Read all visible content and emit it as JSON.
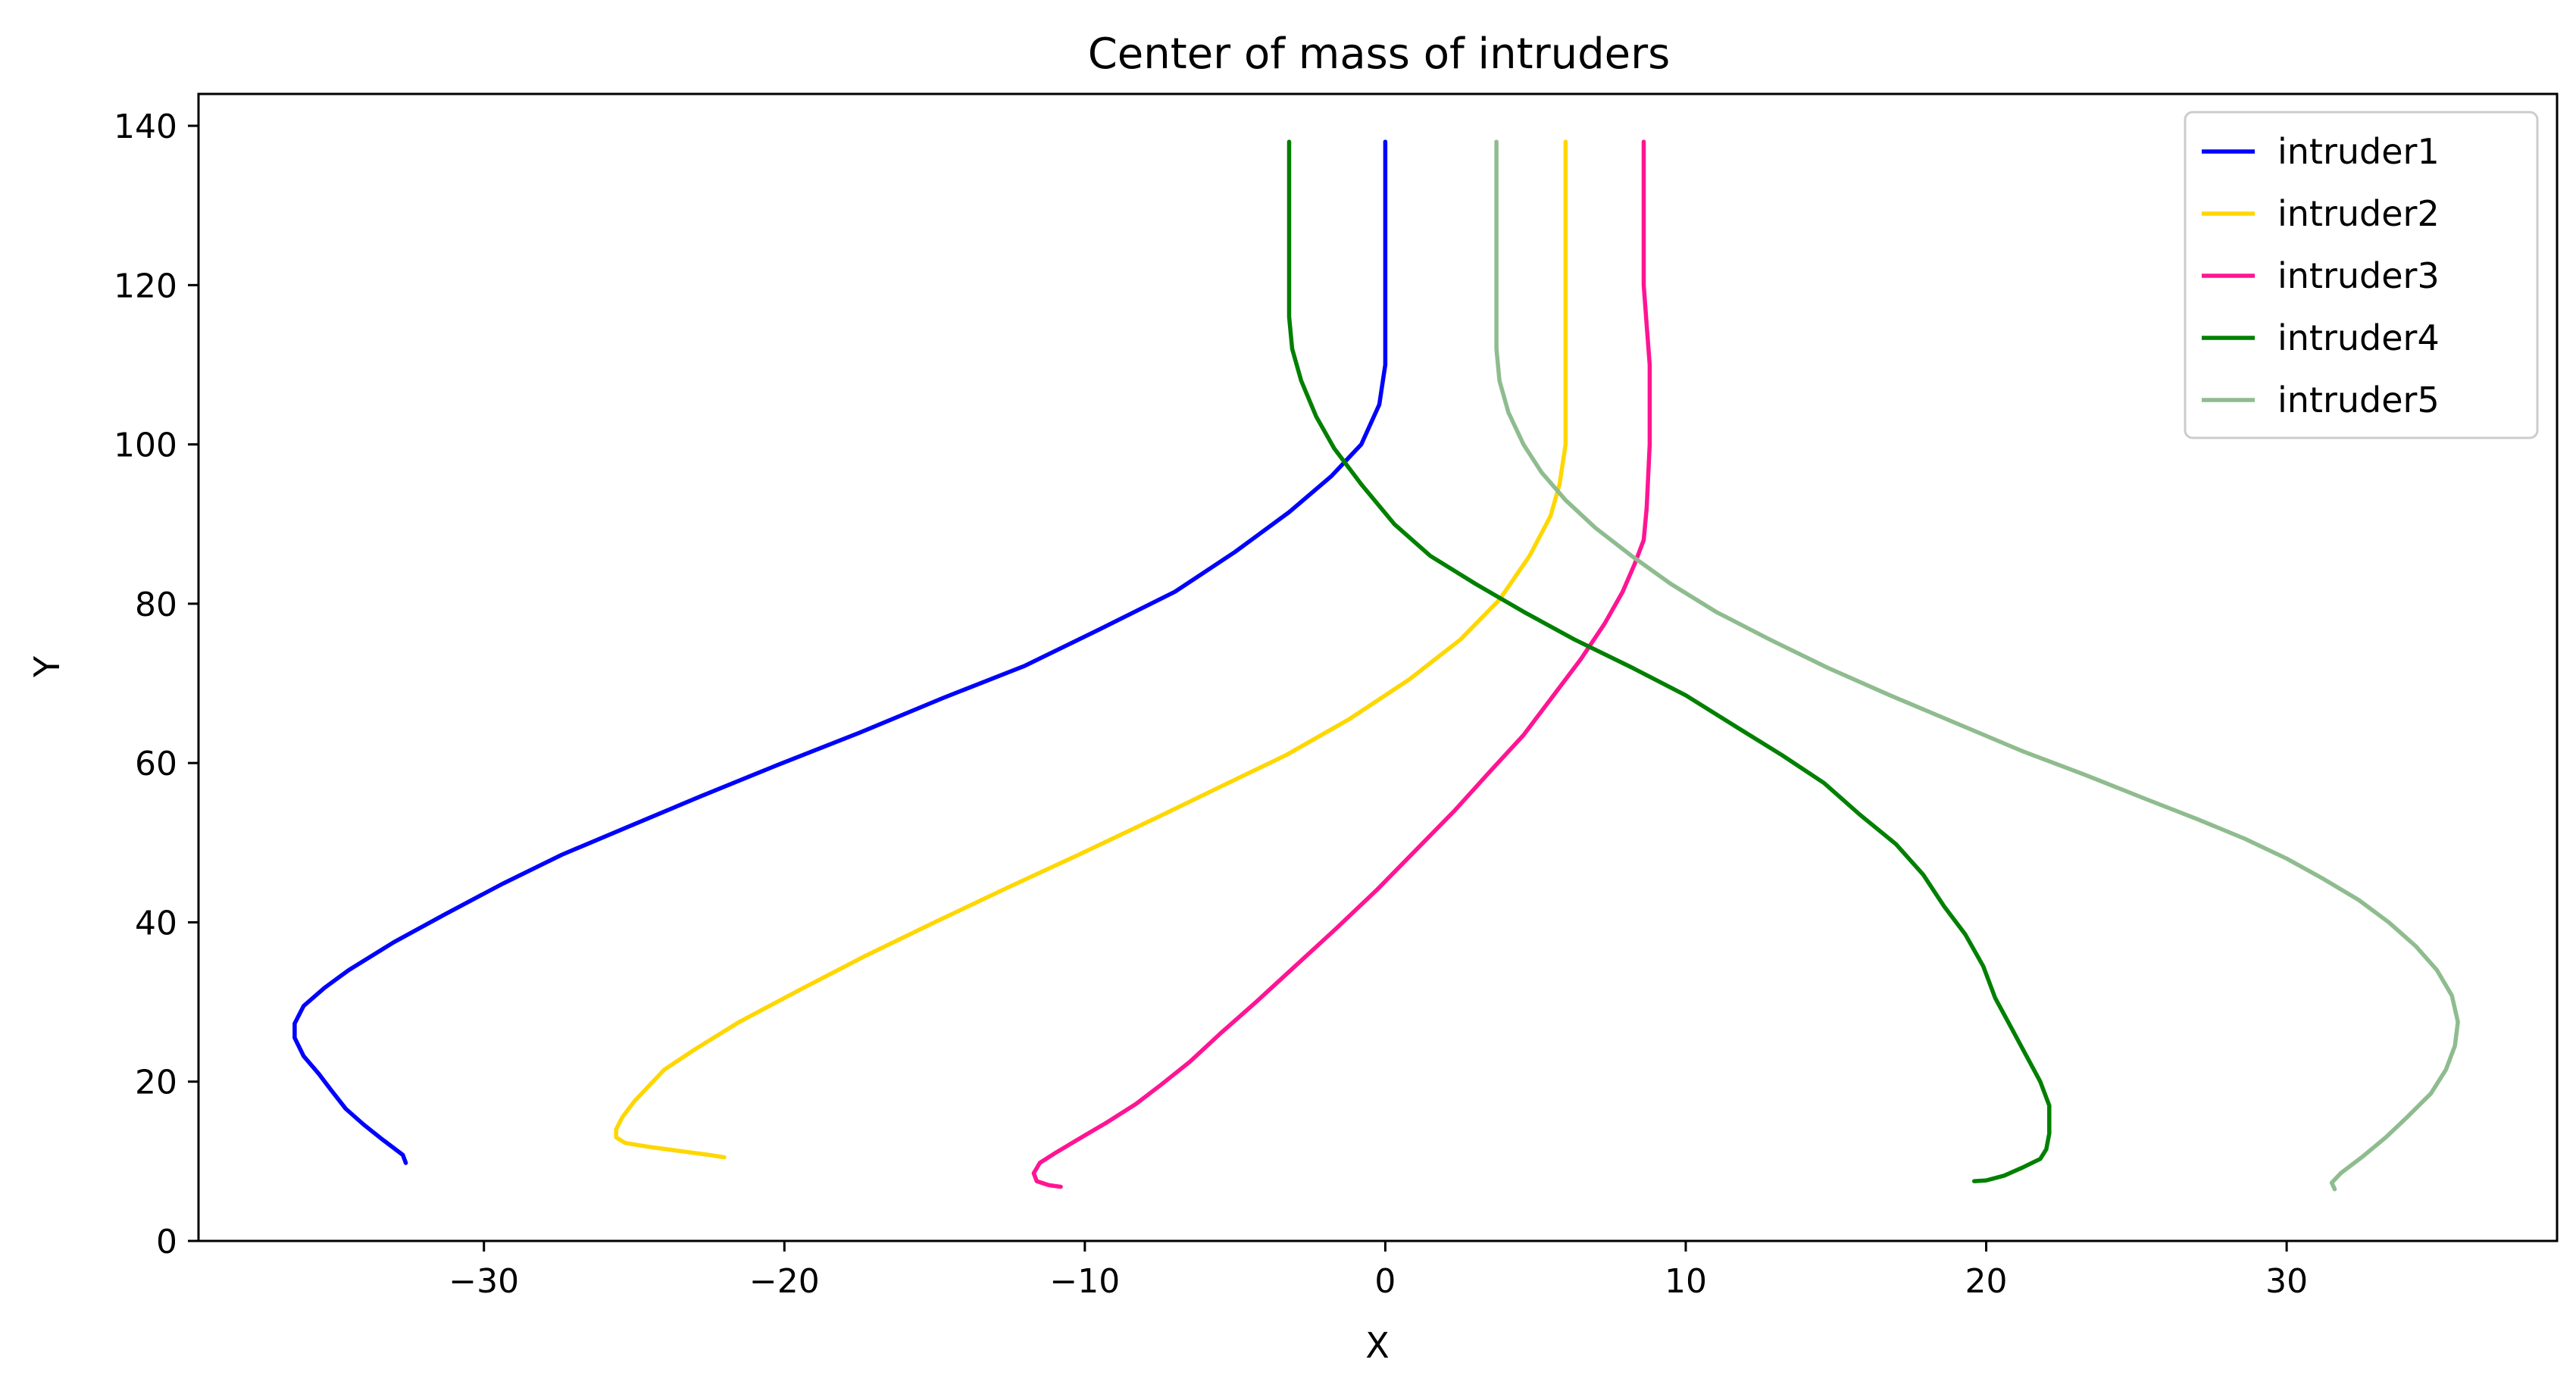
{
  "chart_data": {
    "type": "line",
    "title": "Center of mass of intruders",
    "xlabel": "X",
    "ylabel": "Y",
    "xlim": [
      -39.5,
      39
    ],
    "ylim": [
      0,
      144
    ],
    "xticks": [
      -30,
      -20,
      -10,
      0,
      10,
      20,
      30
    ],
    "yticks": [
      0,
      20,
      40,
      60,
      80,
      100,
      120,
      140
    ],
    "xtick_labels": [
      "−30",
      "−20",
      "−10",
      "0",
      "10",
      "20",
      "30"
    ],
    "ytick_labels": [
      "0",
      "20",
      "40",
      "60",
      "80",
      "100",
      "120",
      "140"
    ],
    "grid": false,
    "legend_position": "top-right",
    "series": [
      {
        "name": "intruder1",
        "color": "#0000ff",
        "points": [
          [
            -32.6,
            9.8
          ],
          [
            -32.7,
            10.8
          ],
          [
            -33.4,
            12.8
          ],
          [
            -34.0,
            14.6
          ],
          [
            -34.6,
            16.6
          ],
          [
            -35.1,
            19.0
          ],
          [
            -35.5,
            21.0
          ],
          [
            -36.0,
            23.2
          ],
          [
            -36.3,
            25.5
          ],
          [
            -36.3,
            27.3
          ],
          [
            -36.0,
            29.5
          ],
          [
            -35.3,
            31.8
          ],
          [
            -34.5,
            34.0
          ],
          [
            -33.0,
            37.5
          ],
          [
            -31.3,
            41.0
          ],
          [
            -29.4,
            44.8
          ],
          [
            -27.4,
            48.5
          ],
          [
            -25.2,
            52.0
          ],
          [
            -22.8,
            55.8
          ],
          [
            -20.2,
            59.8
          ],
          [
            -17.5,
            63.8
          ],
          [
            -14.7,
            68.2
          ],
          [
            -12.0,
            72.2
          ],
          [
            -9.5,
            76.8
          ],
          [
            -7.0,
            81.5
          ],
          [
            -5.0,
            86.5
          ],
          [
            -3.2,
            91.5
          ],
          [
            -1.8,
            96.0
          ],
          [
            -0.8,
            100.0
          ],
          [
            -0.2,
            105.0
          ],
          [
            0.0,
            110.0
          ],
          [
            0.0,
            120.0
          ],
          [
            0.0,
            138.0
          ]
        ]
      },
      {
        "name": "intruder2",
        "color": "#ffd700",
        "points": [
          [
            -22.0,
            10.5
          ],
          [
            -22.5,
            10.8
          ],
          [
            -23.5,
            11.3
          ],
          [
            -24.5,
            11.8
          ],
          [
            -25.3,
            12.3
          ],
          [
            -25.6,
            13.0
          ],
          [
            -25.6,
            14.0
          ],
          [
            -25.4,
            15.5
          ],
          [
            -25.0,
            17.5
          ],
          [
            -24.5,
            19.5
          ],
          [
            -24.0,
            21.5
          ],
          [
            -23.0,
            24.0
          ],
          [
            -21.5,
            27.5
          ],
          [
            -19.5,
            31.5
          ],
          [
            -17.3,
            35.8
          ],
          [
            -15.0,
            40.0
          ],
          [
            -12.6,
            44.3
          ],
          [
            -10.2,
            48.5
          ],
          [
            -7.8,
            52.8
          ],
          [
            -5.5,
            57.0
          ],
          [
            -3.3,
            61.0
          ],
          [
            -1.2,
            65.5
          ],
          [
            0.8,
            70.5
          ],
          [
            2.5,
            75.5
          ],
          [
            3.8,
            80.5
          ],
          [
            4.8,
            86.0
          ],
          [
            5.5,
            91.0
          ],
          [
            5.8,
            95.0
          ],
          [
            6.0,
            100.0
          ],
          [
            6.0,
            110.0
          ],
          [
            6.0,
            120.0
          ],
          [
            6.0,
            138.0
          ]
        ]
      },
      {
        "name": "intruder3",
        "color": "#ff1493",
        "points": [
          [
            -10.8,
            6.8
          ],
          [
            -11.2,
            7.0
          ],
          [
            -11.6,
            7.5
          ],
          [
            -11.7,
            8.5
          ],
          [
            -11.5,
            9.8
          ],
          [
            -11.0,
            11.0
          ],
          [
            -10.2,
            12.8
          ],
          [
            -9.3,
            14.8
          ],
          [
            -8.3,
            17.2
          ],
          [
            -7.5,
            19.5
          ],
          [
            -6.5,
            22.5
          ],
          [
            -5.5,
            26.0
          ],
          [
            -4.3,
            30.0
          ],
          [
            -3.0,
            34.5
          ],
          [
            -1.7,
            39.0
          ],
          [
            -0.3,
            44.0
          ],
          [
            1.0,
            49.0
          ],
          [
            2.3,
            54.0
          ],
          [
            3.5,
            59.0
          ],
          [
            4.6,
            63.5
          ],
          [
            5.6,
            68.5
          ],
          [
            6.5,
            73.0
          ],
          [
            7.3,
            77.5
          ],
          [
            7.9,
            81.5
          ],
          [
            8.3,
            85.0
          ],
          [
            8.6,
            88.0
          ],
          [
            8.7,
            92.0
          ],
          [
            8.8,
            100.0
          ],
          [
            8.8,
            110.0
          ],
          [
            8.7,
            115.0
          ],
          [
            8.6,
            120.0
          ],
          [
            8.6,
            138.0
          ]
        ]
      },
      {
        "name": "intruder4",
        "color": "#008000",
        "points": [
          [
            19.6,
            7.5
          ],
          [
            20.0,
            7.6
          ],
          [
            20.6,
            8.2
          ],
          [
            21.2,
            9.2
          ],
          [
            21.8,
            10.3
          ],
          [
            22.0,
            11.5
          ],
          [
            22.1,
            13.5
          ],
          [
            22.1,
            17.0
          ],
          [
            21.8,
            20.0
          ],
          [
            21.3,
            23.5
          ],
          [
            20.8,
            27.0
          ],
          [
            20.3,
            30.5
          ],
          [
            19.9,
            34.5
          ],
          [
            19.3,
            38.5
          ],
          [
            18.6,
            42.0
          ],
          [
            17.9,
            46.0
          ],
          [
            17.0,
            49.8
          ],
          [
            15.8,
            53.5
          ],
          [
            14.6,
            57.5
          ],
          [
            13.2,
            61.0
          ],
          [
            11.7,
            64.5
          ],
          [
            10.0,
            68.5
          ],
          [
            8.2,
            72.0
          ],
          [
            6.3,
            75.5
          ],
          [
            4.6,
            79.0
          ],
          [
            3.0,
            82.5
          ],
          [
            1.5,
            86.0
          ],
          [
            0.3,
            90.0
          ],
          [
            -0.8,
            95.0
          ],
          [
            -1.7,
            99.5
          ],
          [
            -2.3,
            103.5
          ],
          [
            -2.8,
            108.0
          ],
          [
            -3.1,
            112.0
          ],
          [
            -3.2,
            116.0
          ],
          [
            -3.2,
            120.0
          ],
          [
            -3.2,
            138.0
          ]
        ]
      },
      {
        "name": "intruder5",
        "color": "#8fbc8f",
        "points": [
          [
            31.6,
            6.5
          ],
          [
            31.5,
            7.3
          ],
          [
            31.8,
            8.5
          ],
          [
            32.5,
            10.5
          ],
          [
            33.3,
            13.0
          ],
          [
            34.0,
            15.5
          ],
          [
            34.8,
            18.5
          ],
          [
            35.3,
            21.5
          ],
          [
            35.6,
            24.5
          ],
          [
            35.7,
            27.5
          ],
          [
            35.5,
            30.8
          ],
          [
            35.0,
            34.0
          ],
          [
            34.3,
            37.0
          ],
          [
            33.4,
            40.0
          ],
          [
            32.4,
            42.8
          ],
          [
            31.2,
            45.5
          ],
          [
            30.0,
            48.0
          ],
          [
            28.6,
            50.5
          ],
          [
            27.0,
            53.0
          ],
          [
            25.3,
            55.5
          ],
          [
            23.3,
            58.5
          ],
          [
            21.2,
            61.5
          ],
          [
            19.0,
            65.0
          ],
          [
            16.8,
            68.5
          ],
          [
            14.7,
            72.0
          ],
          [
            12.8,
            75.5
          ],
          [
            11.0,
            79.0
          ],
          [
            9.5,
            82.5
          ],
          [
            8.2,
            86.0
          ],
          [
            7.0,
            89.5
          ],
          [
            6.0,
            93.0
          ],
          [
            5.2,
            96.5
          ],
          [
            4.6,
            100.0
          ],
          [
            4.1,
            104.0
          ],
          [
            3.8,
            108.0
          ],
          [
            3.7,
            112.0
          ],
          [
            3.7,
            116.0
          ],
          [
            3.7,
            120.0
          ],
          [
            3.7,
            138.0
          ]
        ]
      }
    ]
  }
}
